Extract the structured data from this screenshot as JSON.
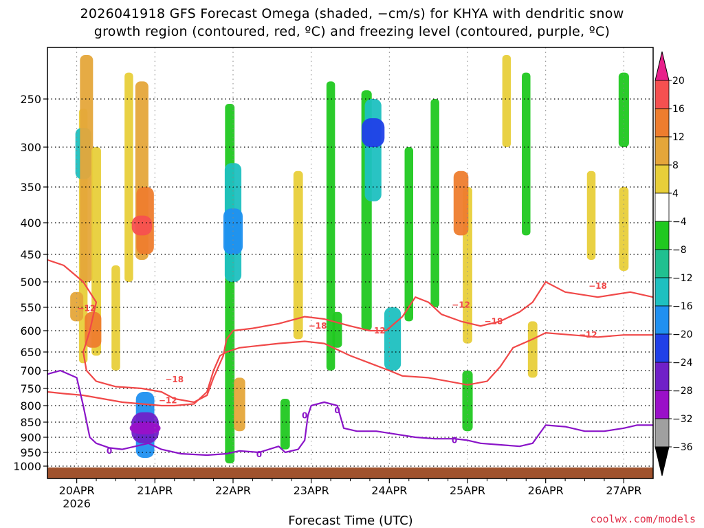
{
  "chart_data": {
    "type": "heatmap",
    "title_line1": "2026041918 GFS Forecast Omega (shaded, −cm/s) for KHYA with dendritic snow",
    "title_line2": "growth region (contoured, red, ºC) and freezing level (contoured, purple, ºC)",
    "xlabel": "Forecast Time (UTC)",
    "credit": "coolwx.com/models",
    "x_unit": "hours from 2026-04-20 00Z",
    "xlim": [
      -9,
      177
    ],
    "x_ticks": [
      {
        "hour": 0,
        "label": "20APR",
        "sublabel": "2026"
      },
      {
        "hour": 24,
        "label": "21APR"
      },
      {
        "hour": 48,
        "label": "22APR"
      },
      {
        "hour": 72,
        "label": "23APR"
      },
      {
        "hour": 96,
        "label": "24APR"
      },
      {
        "hour": 120,
        "label": "25APR"
      },
      {
        "hour": 144,
        "label": "26APR"
      },
      {
        "hour": 168,
        "label": "27APR"
      }
    ],
    "y_unit": "hPa",
    "ylim": [
      1000,
      200
    ],
    "y_ticks": [
      250,
      300,
      350,
      400,
      450,
      500,
      550,
      600,
      650,
      700,
      750,
      800,
      850,
      900,
      950,
      1000
    ],
    "colorbar": {
      "labels": [
        "20",
        "16",
        "12",
        "8",
        "4",
        "−4",
        "−8",
        "−12",
        "−16",
        "−20",
        "−24",
        "−28",
        "−32",
        "−36"
      ],
      "colors": [
        "#f55050",
        "#ee7d2e",
        "#e5a63a",
        "#e8cf3a",
        "#ffffff",
        "#20c820",
        "#20c090",
        "#1ec0c0",
        "#2090f0",
        "#2040e8",
        "#7020c8",
        "#9a10c8",
        "#a0a0a0"
      ],
      "top_arrow_color": "#e8208a",
      "bottom_arrow_color": "#000000"
    },
    "omega_cells": [
      {
        "h": 2,
        "p1": 260,
        "p2": 680,
        "v": 5
      },
      {
        "h": 2,
        "p1": 280,
        "p2": 340,
        "v": -13
      },
      {
        "h": 3,
        "p1": 200,
        "p2": 500,
        "v": 10
      },
      {
        "h": 0,
        "p1": 520,
        "p2": 580,
        "v": 10
      },
      {
        "h": 6,
        "p1": 300,
        "p2": 660,
        "v": 6
      },
      {
        "h": 5,
        "p1": 560,
        "p2": 640,
        "v": 14
      },
      {
        "h": 16,
        "p1": 220,
        "p2": 500,
        "v": 5
      },
      {
        "h": 20,
        "p1": 230,
        "p2": 460,
        "v": 10
      },
      {
        "h": 21,
        "p1": 350,
        "p2": 450,
        "v": 15
      },
      {
        "h": 20,
        "p1": 390,
        "p2": 420,
        "v": 18
      },
      {
        "h": 12,
        "p1": 470,
        "p2": 700,
        "v": 5
      },
      {
        "h": 21,
        "p1": 760,
        "p2": 970,
        "v": -16
      },
      {
        "h": 21,
        "p1": 820,
        "p2": 920,
        "v": -26
      },
      {
        "h": 21,
        "p1": 850,
        "p2": 890,
        "v": -30
      },
      {
        "h": 47,
        "p1": 255,
        "p2": 990,
        "v": -6
      },
      {
        "h": 48,
        "p1": 320,
        "p2": 500,
        "v": -14
      },
      {
        "h": 48,
        "p1": 380,
        "p2": 450,
        "v": -17
      },
      {
        "h": 50,
        "p1": 720,
        "p2": 880,
        "v": 8
      },
      {
        "h": 68,
        "p1": 330,
        "p2": 620,
        "v": 6
      },
      {
        "h": 64,
        "p1": 780,
        "p2": 940,
        "v": -6
      },
      {
        "h": 78,
        "p1": 230,
        "p2": 700,
        "v": -5
      },
      {
        "h": 80,
        "p1": 560,
        "p2": 640,
        "v": -6
      },
      {
        "h": 89,
        "p1": 240,
        "p2": 600,
        "v": -7
      },
      {
        "h": 91,
        "p1": 250,
        "p2": 370,
        "v": -14
      },
      {
        "h": 91,
        "p1": 270,
        "p2": 300,
        "v": -21
      },
      {
        "h": 97,
        "p1": 550,
        "p2": 700,
        "v": -14
      },
      {
        "h": 102,
        "p1": 300,
        "p2": 580,
        "v": -5
      },
      {
        "h": 110,
        "p1": 250,
        "p2": 550,
        "v": -5
      },
      {
        "h": 120,
        "p1": 350,
        "p2": 630,
        "v": 6
      },
      {
        "h": 118,
        "p1": 330,
        "p2": 420,
        "v": 12
      },
      {
        "h": 120,
        "p1": 700,
        "p2": 880,
        "v": -7
      },
      {
        "h": 132,
        "p1": 200,
        "p2": 300,
        "v": 5
      },
      {
        "h": 140,
        "p1": 580,
        "p2": 720,
        "v": 6
      },
      {
        "h": 138,
        "p1": 220,
        "p2": 420,
        "v": -5
      },
      {
        "h": 158,
        "p1": 330,
        "p2": 460,
        "v": 5
      },
      {
        "h": 168,
        "p1": 350,
        "p2": 480,
        "v": 6
      },
      {
        "h": 168,
        "p1": 220,
        "p2": 300,
        "v": -7
      }
    ],
    "contour_labels": [
      {
        "text": "−12",
        "color": "#f04848"
      },
      {
        "text": "−18",
        "color": "#f04848"
      },
      {
        "text": "−12",
        "color": "#f04848"
      },
      {
        "text": "−18",
        "color": "#f04848"
      },
      {
        "text": "−12",
        "color": "#f04848"
      },
      {
        "text": "−12",
        "color": "#f04848"
      },
      {
        "text": "−18",
        "color": "#f04848"
      },
      {
        "text": "−18",
        "color": "#f04848"
      },
      {
        "text": "−12",
        "color": "#f04848"
      },
      {
        "text": "0",
        "color": "#8a14c8"
      },
      {
        "text": "0",
        "color": "#8a14c8"
      },
      {
        "text": "0",
        "color": "#8a14c8"
      },
      {
        "text": "0",
        "color": "#8a14c8"
      },
      {
        "text": "0",
        "color": "#8a14c8"
      }
    ],
    "contours": [
      {
        "name": "dgz-top-minus18",
        "color": "#f04848",
        "points": [
          [
            -9,
            460
          ],
          [
            -4,
            470
          ],
          [
            2,
            500
          ],
          [
            6,
            540
          ],
          [
            4,
            600
          ],
          [
            2,
            650
          ],
          [
            3,
            700
          ],
          [
            6,
            730
          ],
          [
            12,
            745
          ],
          [
            20,
            750
          ],
          [
            26,
            760
          ],
          [
            30,
            780
          ],
          [
            36,
            790
          ],
          [
            40,
            770
          ],
          [
            42,
            720
          ],
          [
            45,
            660
          ],
          [
            46,
            620
          ],
          [
            48,
            600
          ],
          [
            54,
            595
          ],
          [
            62,
            585
          ],
          [
            70,
            570
          ],
          [
            76,
            575
          ],
          [
            84,
            590
          ],
          [
            90,
            600
          ],
          [
            95,
            600
          ],
          [
            100,
            570
          ],
          [
            104,
            530
          ],
          [
            108,
            540
          ],
          [
            112,
            565
          ],
          [
            118,
            580
          ],
          [
            124,
            590
          ],
          [
            130,
            580
          ],
          [
            136,
            560
          ],
          [
            140,
            540
          ],
          [
            144,
            500
          ],
          [
            150,
            520
          ],
          [
            160,
            530
          ],
          [
            170,
            520
          ],
          [
            177,
            530
          ]
        ]
      },
      {
        "name": "dgz-bottom-minus12",
        "color": "#f04848",
        "points": [
          [
            -9,
            760
          ],
          [
            -4,
            765
          ],
          [
            2,
            770
          ],
          [
            8,
            780
          ],
          [
            14,
            790
          ],
          [
            20,
            795
          ],
          [
            26,
            800
          ],
          [
            30,
            800
          ],
          [
            36,
            795
          ],
          [
            40,
            760
          ],
          [
            42,
            700
          ],
          [
            44,
            660
          ],
          [
            46,
            650
          ],
          [
            50,
            640
          ],
          [
            56,
            635
          ],
          [
            62,
            630
          ],
          [
            70,
            625
          ],
          [
            76,
            630
          ],
          [
            84,
            660
          ],
          [
            90,
            680
          ],
          [
            96,
            700
          ],
          [
            100,
            715
          ],
          [
            108,
            720
          ],
          [
            114,
            730
          ],
          [
            120,
            740
          ],
          [
            126,
            730
          ],
          [
            130,
            690
          ],
          [
            134,
            640
          ],
          [
            140,
            620
          ],
          [
            144,
            605
          ],
          [
            152,
            610
          ],
          [
            160,
            615
          ],
          [
            168,
            610
          ],
          [
            177,
            610
          ]
        ]
      },
      {
        "name": "freezing-level",
        "color": "#8a14c8",
        "points": [
          [
            -9,
            710
          ],
          [
            -5,
            700
          ],
          [
            0,
            720
          ],
          [
            2,
            800
          ],
          [
            4,
            900
          ],
          [
            6,
            920
          ],
          [
            10,
            935
          ],
          [
            14,
            940
          ],
          [
            18,
            930
          ],
          [
            22,
            920
          ],
          [
            26,
            940
          ],
          [
            32,
            955
          ],
          [
            40,
            960
          ],
          [
            46,
            955
          ],
          [
            50,
            945
          ],
          [
            56,
            950
          ],
          [
            62,
            930
          ],
          [
            64,
            950
          ],
          [
            68,
            940
          ],
          [
            70,
            910
          ],
          [
            71,
            830
          ],
          [
            72,
            800
          ],
          [
            76,
            790
          ],
          [
            80,
            800
          ],
          [
            82,
            870
          ],
          [
            86,
            880
          ],
          [
            92,
            880
          ],
          [
            98,
            890
          ],
          [
            104,
            900
          ],
          [
            110,
            905
          ],
          [
            116,
            905
          ],
          [
            120,
            910
          ],
          [
            124,
            920
          ],
          [
            130,
            925
          ],
          [
            136,
            930
          ],
          [
            140,
            920
          ],
          [
            144,
            860
          ],
          [
            150,
            865
          ],
          [
            156,
            880
          ],
          [
            162,
            880
          ],
          [
            168,
            870
          ],
          [
            172,
            860
          ],
          [
            177,
            860
          ]
        ]
      }
    ]
  }
}
